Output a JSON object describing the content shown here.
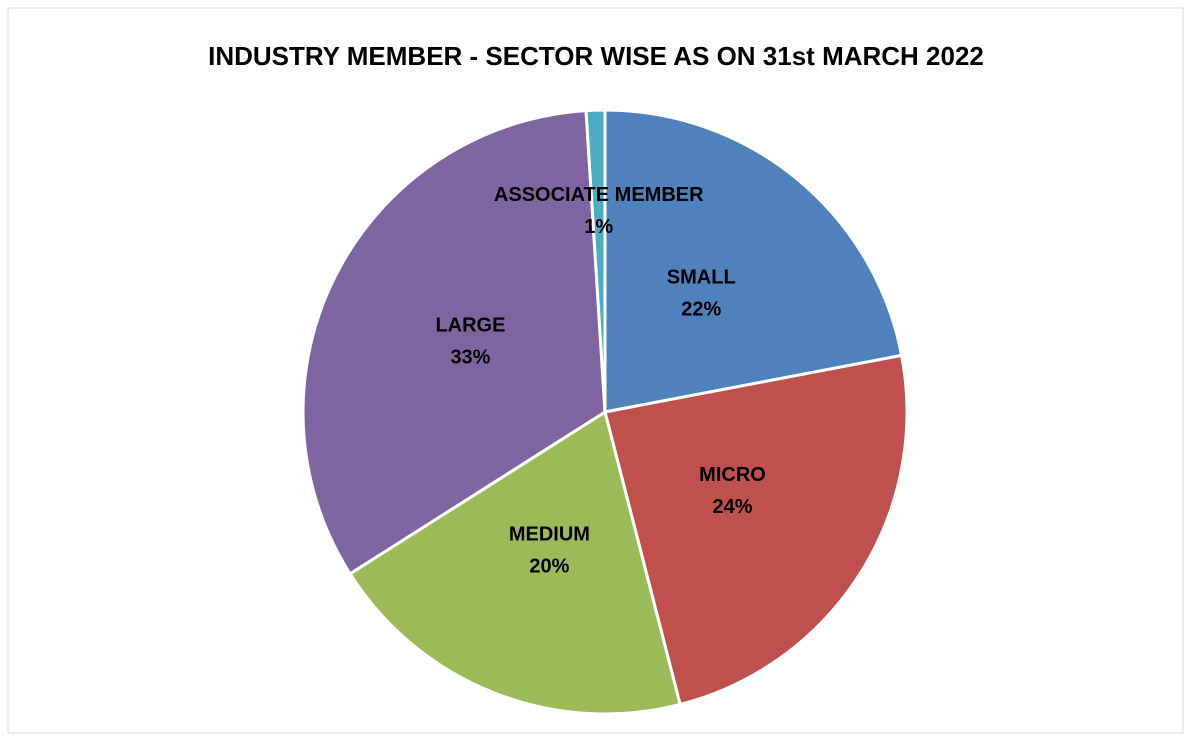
{
  "chart_data": {
    "type": "pie",
    "title": "INDUSTRY MEMBER - SECTOR WISE AS ON 31st MARCH 2022",
    "categories": [
      "SMALL",
      "MICRO",
      "MEDIUM",
      "LARGE",
      "ASSOCIATE MEMBER"
    ],
    "values": [
      22,
      24,
      20,
      33,
      1
    ],
    "value_labels": [
      "22%",
      "24%",
      "20%",
      "33%",
      "1%"
    ],
    "colors": [
      "#4f81bd",
      "#c0504d",
      "#9bbb59",
      "#8064a2",
      "#4bacc6"
    ]
  }
}
